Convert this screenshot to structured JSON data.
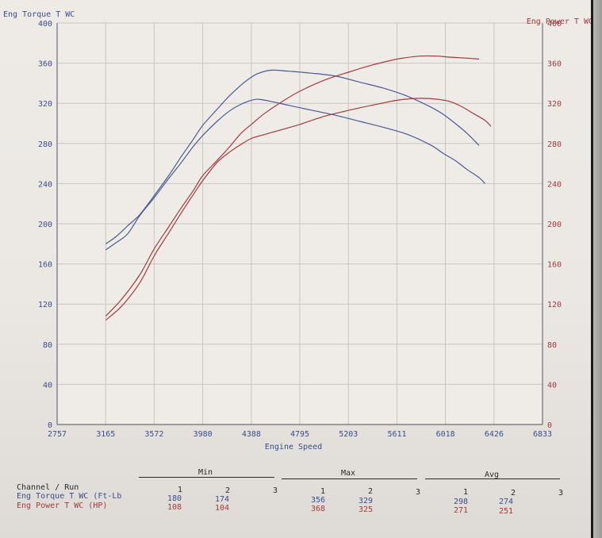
{
  "chart_data": {
    "type": "line",
    "y_left_label": "Eng Torque T WC",
    "y_right_label": "Eng Power T WC",
    "xlabel": "Engine Speed",
    "x_ticks": [
      "2757",
      "3165",
      "3572",
      "3980",
      "4388",
      "4795",
      "5203",
      "5611",
      "6018",
      "6426",
      "6833"
    ],
    "xlim": [
      2757,
      6833
    ],
    "y_left_ticks": [
      "0",
      "40",
      "80",
      "120",
      "160",
      "200",
      "240",
      "280",
      "320",
      "360",
      "400"
    ],
    "y_left_lim": [
      0,
      400
    ],
    "y_right_ticks": [
      "0",
      "40",
      "80",
      "120",
      "160",
      "200",
      "240",
      "280",
      "320",
      "360",
      "400"
    ],
    "y_right_lim": [
      0,
      400
    ],
    "grid": true,
    "colors": {
      "torque": "#4a5a92",
      "power": "#a23a3e",
      "grid": "#c9c6c2",
      "axis": "#6d6d7a"
    },
    "series": [
      {
        "run": "1",
        "channel": "torque",
        "axis": "left",
        "x": [
          3165,
          3250,
          3350,
          3450,
          3572,
          3700,
          3800,
          3900,
          3980,
          4100,
          4200,
          4300,
          4388,
          4450,
          4550,
          4700,
          4900,
          5100,
          5300,
          5500,
          5700,
          5900,
          6000,
          6100,
          6200,
          6300
        ],
        "y": [
          180,
          187,
          198,
          209,
          228,
          249,
          267,
          284,
          298,
          314,
          327,
          338,
          346,
          350,
          353,
          352,
          350,
          347,
          341,
          335,
          327,
          316,
          309,
          300,
          290,
          278
        ]
      },
      {
        "run": "2",
        "channel": "torque",
        "axis": "left",
        "x": [
          3165,
          3250,
          3350,
          3450,
          3572,
          3700,
          3800,
          3900,
          3980,
          4100,
          4200,
          4300,
          4388,
          4450,
          4550,
          4700,
          4900,
          5100,
          5300,
          5500,
          5700,
          5900,
          6000,
          6100,
          6200,
          6300,
          6350
        ],
        "y": [
          174,
          181,
          190,
          208,
          226,
          246,
          261,
          277,
          288,
          302,
          312,
          319,
          323,
          324,
          322,
          318,
          313,
          308,
          302,
          296,
          289,
          278,
          270,
          263,
          254,
          246,
          240
        ]
      },
      {
        "run": "1",
        "channel": "power",
        "axis": "right",
        "x": [
          3165,
          3300,
          3450,
          3572,
          3700,
          3800,
          3900,
          3980,
          4100,
          4200,
          4300,
          4388,
          4500,
          4650,
          4795,
          5000,
          5203,
          5400,
          5611,
          5800,
          5950,
          6050,
          6200,
          6300
        ],
        "y": [
          108,
          125,
          149,
          175,
          198,
          216,
          233,
          248,
          263,
          276,
          290,
          299,
          310,
          322,
          332,
          343,
          351,
          358,
          364,
          367,
          367,
          366,
          365,
          364
        ]
      },
      {
        "run": "2",
        "channel": "power",
        "axis": "right",
        "x": [
          3165,
          3300,
          3450,
          3572,
          3700,
          3800,
          3900,
          3980,
          4100,
          4200,
          4300,
          4388,
          4500,
          4650,
          4795,
          5000,
          5203,
          5400,
          5611,
          5800,
          5950,
          6050,
          6150,
          6250,
          6350,
          6400
        ],
        "y": [
          104,
          118,
          141,
          168,
          192,
          211,
          229,
          243,
          261,
          271,
          279,
          285,
          289,
          294,
          299,
          307,
          313,
          318,
          323,
          325,
          324,
          322,
          317,
          310,
          303,
          297
        ]
      }
    ]
  },
  "table": {
    "header_row_label": "Channel / Run",
    "groups": [
      {
        "name": "Min",
        "runs": [
          "1",
          "2",
          "3"
        ]
      },
      {
        "name": "Max",
        "runs": [
          "1",
          "2",
          "3"
        ]
      },
      {
        "name": "Avg",
        "runs": [
          "1",
          "2",
          "3"
        ]
      }
    ],
    "rows": [
      {
        "label": "Eng Torque T WC (Ft-Lb",
        "min": [
          "180",
          "174"
        ],
        "max": [
          "356",
          "329"
        ],
        "avg": [
          "298",
          "274"
        ]
      },
      {
        "label": "Eng Power T WC (HP)",
        "min": [
          "108",
          "104"
        ],
        "max": [
          "368",
          "325"
        ],
        "avg": [
          "271",
          "251"
        ]
      }
    ]
  }
}
